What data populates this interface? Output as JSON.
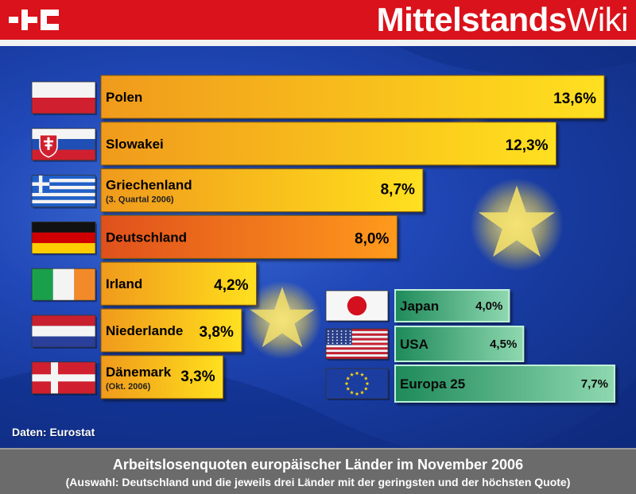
{
  "brand": {
    "part1": "Mittelstands",
    "part2": "Wiki"
  },
  "colors": {
    "header_red": "#d9121b",
    "bar_left": "#f09a1a",
    "bar_right": "#ffe020",
    "bar_highlight_left": "#e0501a",
    "bar_highlight_right": "#ff9a1a",
    "green_bar_left": "#1e8a5a",
    "green_bar_right": "#8fd8b0"
  },
  "chart_data": {
    "type": "bar",
    "orientation": "horizontal",
    "unit": "%",
    "source": "Daten: Eurostat",
    "title": "Arbeitslosenquoten europäischer Länder im November 2006",
    "subtitle": "(Auswahl: Deutschland und die jeweils drei Länder mit der geringsten und der höchsten Quote)",
    "groups": [
      {
        "name": "",
        "items": [
          {
            "country": "Polen",
            "value": 13.6,
            "label": "13,6%",
            "note": "",
            "flag": "poland-flag"
          },
          {
            "country": "Slowakei",
            "value": 12.3,
            "label": "12,3%",
            "note": "",
            "flag": "slovakia-flag"
          },
          {
            "country": "Griechenland",
            "value": 8.7,
            "label": "8,7%",
            "note": "(3. Quartal 2006)",
            "flag": "greece-flag"
          },
          {
            "country": "Deutschland",
            "value": 8.0,
            "label": "8,0%",
            "note": "",
            "flag": "germany-flag",
            "highlight": true
          },
          {
            "country": "Irland",
            "value": 4.2,
            "label": "4,2%",
            "note": "",
            "flag": "ireland-flag"
          },
          {
            "country": "Niederlande",
            "value": 3.8,
            "label": "3,8%",
            "note": "",
            "flag": "netherlands-flag"
          },
          {
            "country": "Dänemark",
            "value": 3.3,
            "label": "3,3%",
            "note": "(Okt. 2006)",
            "flag": "denmark-flag"
          }
        ]
      },
      {
        "name": "",
        "items": [
          {
            "country": "Japan",
            "value": 4.0,
            "label": "4,0%",
            "flag": "japan-flag"
          },
          {
            "country": "USA",
            "value": 4.5,
            "label": "4,5%",
            "flag": "usa-flag"
          },
          {
            "country": "Europa 25",
            "value": 7.7,
            "label": "7,7%",
            "flag": "eu-flag"
          }
        ]
      }
    ]
  }
}
